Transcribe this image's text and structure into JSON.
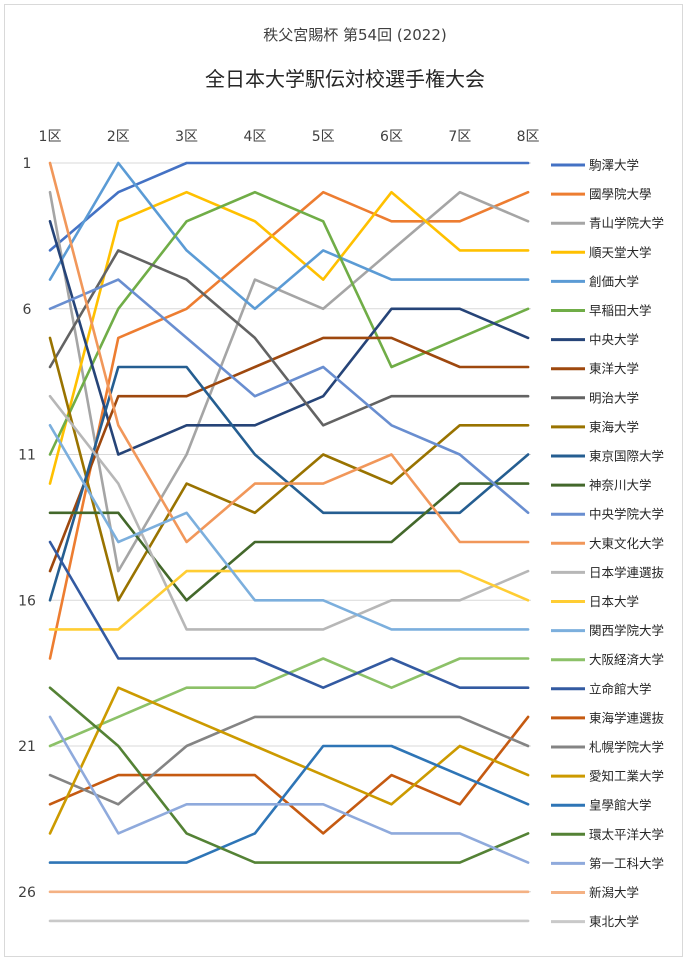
{
  "chart_data": {
    "type": "line",
    "title": "全日本大学駅伝対校選手権大会",
    "subtitle": "秩父宮賜杯 第54回 (2022)",
    "categories": [
      "1区",
      "2区",
      "3区",
      "4区",
      "5区",
      "6区",
      "7区",
      "8区"
    ],
    "y_ticks": [
      1,
      6,
      11,
      16,
      21,
      26
    ],
    "ylim": [
      1,
      27
    ],
    "y_reversed": true,
    "grid": "horizontal",
    "legend_position": "right",
    "series": [
      {
        "name": "駒澤大学",
        "color": "#4472c4",
        "values": [
          4,
          2,
          1,
          1,
          1,
          1,
          1,
          1
        ]
      },
      {
        "name": "國學院大學",
        "color": "#ed7d31",
        "values": [
          18,
          7,
          6,
          4,
          2,
          3,
          3,
          2
        ]
      },
      {
        "name": "青山学院大学",
        "color": "#a5a5a5",
        "values": [
          2,
          15,
          11,
          5,
          6,
          4,
          2,
          3
        ]
      },
      {
        "name": "順天堂大学",
        "color": "#ffc000",
        "values": [
          12,
          3,
          2,
          3,
          5,
          2,
          4,
          4
        ]
      },
      {
        "name": "創価大学",
        "color": "#5b9bd5",
        "values": [
          5,
          1,
          4,
          6,
          4,
          5,
          5,
          5
        ]
      },
      {
        "name": "早稲田大学",
        "color": "#70ad47",
        "values": [
          11,
          6,
          3,
          2,
          3,
          8,
          7,
          6
        ]
      },
      {
        "name": "中央大学",
        "color": "#264478",
        "values": [
          3,
          11,
          10,
          10,
          9,
          6,
          6,
          7
        ]
      },
      {
        "name": "東洋大学",
        "color": "#9e480e",
        "values": [
          15,
          9,
          9,
          8,
          7,
          7,
          8,
          8
        ]
      },
      {
        "name": "明治大学",
        "color": "#636363",
        "values": [
          8,
          4,
          5,
          7,
          10,
          9,
          9,
          9
        ]
      },
      {
        "name": "東海大学",
        "color": "#997300",
        "values": [
          7,
          16,
          12,
          13,
          11,
          12,
          10,
          10
        ]
      },
      {
        "name": "東京国際大学",
        "color": "#255e91",
        "values": [
          16,
          8,
          8,
          11,
          13,
          13,
          13,
          11
        ]
      },
      {
        "name": "神奈川大学",
        "color": "#43682b",
        "values": [
          13,
          13,
          16,
          14,
          14,
          14,
          12,
          12
        ]
      },
      {
        "name": "中央学院大学",
        "color": "#698ed0",
        "values": [
          6,
          5,
          7,
          9,
          8,
          10,
          11,
          13
        ]
      },
      {
        "name": "大東文化大学",
        "color": "#f1975a",
        "values": [
          1,
          10,
          14,
          12,
          12,
          11,
          14,
          14
        ]
      },
      {
        "name": "日本学連選抜",
        "color": "#b7b7b7",
        "values": [
          9,
          12,
          17,
          17,
          17,
          16,
          16,
          15
        ]
      },
      {
        "name": "日本大学",
        "color": "#ffcd33",
        "values": [
          17,
          17,
          15,
          15,
          15,
          15,
          15,
          16
        ]
      },
      {
        "name": "関西学院大学",
        "color": "#7cafdd",
        "values": [
          10,
          14,
          13,
          16,
          16,
          17,
          17,
          17
        ]
      },
      {
        "name": "大阪経済大学",
        "color": "#8cc168",
        "values": [
          21,
          20,
          19,
          19,
          18,
          19,
          18,
          18
        ]
      },
      {
        "name": "立命館大学",
        "color": "#335aa1",
        "values": [
          14,
          18,
          18,
          18,
          19,
          18,
          19,
          19
        ]
      },
      {
        "name": "東海学連選抜",
        "color": "#c55a11",
        "values": [
          23,
          22,
          22,
          22,
          24,
          22,
          23,
          20
        ]
      },
      {
        "name": "札幌学院大学",
        "color": "#848484",
        "values": [
          22,
          23,
          21,
          20,
          20,
          20,
          20,
          21
        ]
      },
      {
        "name": "愛知工業大学",
        "color": "#cc9a00",
        "values": [
          24,
          19,
          20,
          21,
          22,
          23,
          21,
          22
        ]
      },
      {
        "name": "皇學館大学",
        "color": "#2e75b6",
        "values": [
          25,
          25,
          25,
          24,
          21,
          21,
          22,
          23
        ]
      },
      {
        "name": "環太平洋大学",
        "color": "#548235",
        "values": [
          19,
          21,
          24,
          25,
          25,
          25,
          25,
          24
        ]
      },
      {
        "name": "第一工科大学",
        "color": "#8faadc",
        "values": [
          20,
          24,
          23,
          23,
          23,
          24,
          24,
          25
        ]
      },
      {
        "name": "新潟大学",
        "color": "#f4b183",
        "values": [
          26,
          26,
          26,
          26,
          26,
          26,
          26,
          26
        ]
      },
      {
        "name": "東北大学",
        "color": "#c9c9c9",
        "values": [
          27,
          27,
          27,
          27,
          27,
          27,
          27,
          27
        ]
      }
    ]
  }
}
